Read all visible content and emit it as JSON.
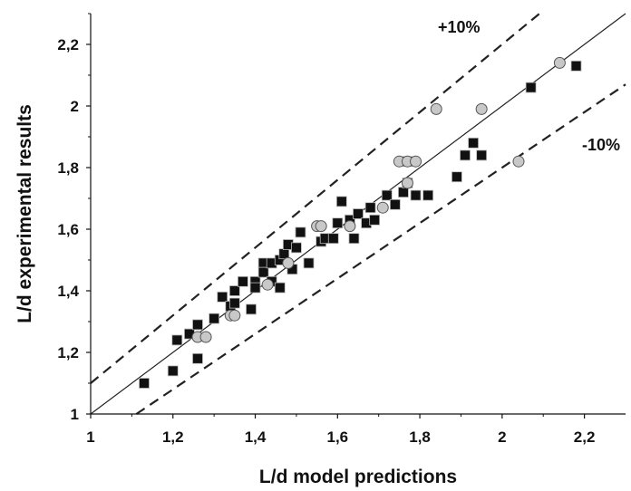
{
  "chart_data": {
    "type": "scatter",
    "xlabel": "L/d model predictions",
    "ylabel": "L/d experimental results",
    "xlim": [
      1,
      2.3
    ],
    "ylim": [
      1,
      2.3
    ],
    "x_ticks": [
      "1",
      "1,2",
      "1,4",
      "1,6",
      "1,8",
      "2",
      "2,2"
    ],
    "y_ticks": [
      "1",
      "1,2",
      "1,4",
      "1,6",
      "1,8",
      "2",
      "2,2"
    ],
    "x_tick_values": [
      1,
      1.2,
      1.4,
      1.6,
      1.8,
      2,
      2.2
    ],
    "y_tick_values": [
      1,
      1.2,
      1.4,
      1.6,
      1.8,
      2,
      2.2
    ],
    "grid": false,
    "lines": [
      {
        "style": "solid",
        "slope": 1.0,
        "label": ""
      },
      {
        "style": "dashed",
        "slope": 1.1,
        "label": "+10%"
      },
      {
        "style": "dashed",
        "slope": 0.9,
        "label": "-10%"
      }
    ],
    "series": [
      {
        "marker": "square",
        "color": "#111111",
        "points": [
          [
            1.13,
            1.1
          ],
          [
            1.2,
            1.14
          ],
          [
            1.21,
            1.24
          ],
          [
            1.24,
            1.26
          ],
          [
            1.26,
            1.29
          ],
          [
            1.26,
            1.18
          ],
          [
            1.3,
            1.31
          ],
          [
            1.32,
            1.38
          ],
          [
            1.34,
            1.35
          ],
          [
            1.35,
            1.36
          ],
          [
            1.35,
            1.4
          ],
          [
            1.37,
            1.43
          ],
          [
            1.39,
            1.34
          ],
          [
            1.4,
            1.43
          ],
          [
            1.4,
            1.41
          ],
          [
            1.42,
            1.49
          ],
          [
            1.42,
            1.46
          ],
          [
            1.44,
            1.49
          ],
          [
            1.44,
            1.43
          ],
          [
            1.46,
            1.41
          ],
          [
            1.46,
            1.5
          ],
          [
            1.47,
            1.52
          ],
          [
            1.48,
            1.55
          ],
          [
            1.49,
            1.47
          ],
          [
            1.5,
            1.54
          ],
          [
            1.51,
            1.59
          ],
          [
            1.53,
            1.49
          ],
          [
            1.56,
            1.56
          ],
          [
            1.57,
            1.57
          ],
          [
            1.59,
            1.57
          ],
          [
            1.6,
            1.62
          ],
          [
            1.61,
            1.69
          ],
          [
            1.63,
            1.63
          ],
          [
            1.64,
            1.57
          ],
          [
            1.65,
            1.65
          ],
          [
            1.67,
            1.62
          ],
          [
            1.68,
            1.67
          ],
          [
            1.69,
            1.63
          ],
          [
            1.72,
            1.71
          ],
          [
            1.74,
            1.68
          ],
          [
            1.76,
            1.72
          ],
          [
            1.77,
            1.75
          ],
          [
            1.77,
            1.82
          ],
          [
            1.79,
            1.71
          ],
          [
            1.82,
            1.71
          ],
          [
            1.89,
            1.77
          ],
          [
            1.91,
            1.84
          ],
          [
            1.93,
            1.88
          ],
          [
            1.95,
            1.84
          ],
          [
            2.07,
            2.06
          ],
          [
            2.18,
            2.13
          ]
        ]
      },
      {
        "marker": "circle",
        "color": "#c8c8c8",
        "points": [
          [
            1.26,
            1.25
          ],
          [
            1.28,
            1.25
          ],
          [
            1.34,
            1.32
          ],
          [
            1.35,
            1.32
          ],
          [
            1.43,
            1.42
          ],
          [
            1.48,
            1.49
          ],
          [
            1.55,
            1.61
          ],
          [
            1.56,
            1.61
          ],
          [
            1.63,
            1.61
          ],
          [
            1.71,
            1.67
          ],
          [
            1.75,
            1.82
          ],
          [
            1.77,
            1.75
          ],
          [
            1.77,
            1.82
          ],
          [
            1.79,
            1.82
          ],
          [
            1.84,
            1.99
          ],
          [
            1.95,
            1.99
          ],
          [
            2.04,
            1.82
          ],
          [
            2.14,
            2.14
          ]
        ]
      }
    ]
  }
}
